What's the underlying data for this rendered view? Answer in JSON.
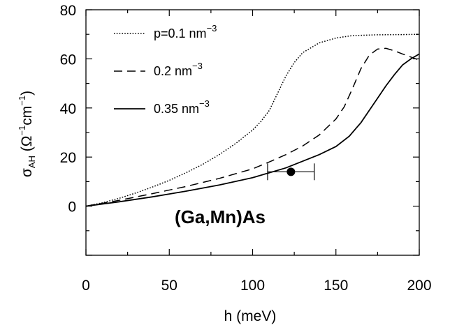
{
  "chart_data": {
    "type": "line",
    "xlabel": "h (meV)",
    "ylabel": {
      "main": "σ",
      "sub": "AH",
      "paren_open": " (Ω",
      "exp1": "−1",
      "unit2": "cm",
      "exp2": "−1",
      "paren_close": ")"
    },
    "xlim": [
      0,
      200
    ],
    "ylim": [
      -20,
      80
    ],
    "xticks": [
      0,
      50,
      100,
      150,
      200
    ],
    "yticks": [
      0,
      20,
      40,
      60,
      80
    ],
    "annotation": "(Ga,Mn)As",
    "series": [
      {
        "name": "p=0.1 nm",
        "name_sup": "−3",
        "style": "dotted",
        "points": [
          [
            0,
            0
          ],
          [
            10,
            1.4
          ],
          [
            20,
            3.2
          ],
          [
            30,
            5.4
          ],
          [
            40,
            7.8
          ],
          [
            50,
            10.5
          ],
          [
            60,
            13.6
          ],
          [
            70,
            17
          ],
          [
            80,
            21
          ],
          [
            90,
            25.6
          ],
          [
            100,
            31
          ],
          [
            105,
            34.5
          ],
          [
            110,
            39
          ],
          [
            115,
            46
          ],
          [
            120,
            53
          ],
          [
            125,
            58.5
          ],
          [
            130,
            62.5
          ],
          [
            140,
            66.5
          ],
          [
            150,
            68.5
          ],
          [
            160,
            69.5
          ],
          [
            175,
            69.8
          ],
          [
            190,
            69.9
          ],
          [
            200,
            70
          ]
        ]
      },
      {
        "name": "0.2 nm",
        "name_sup": "−3",
        "style": "dashed",
        "points": [
          [
            0,
            0
          ],
          [
            20,
            2.4
          ],
          [
            40,
            5.1
          ],
          [
            60,
            8
          ],
          [
            80,
            11.3
          ],
          [
            100,
            15.2
          ],
          [
            110,
            18
          ],
          [
            120,
            21
          ],
          [
            130,
            24.5
          ],
          [
            140,
            29
          ],
          [
            150,
            35.5
          ],
          [
            155,
            40.5
          ],
          [
            160,
            48
          ],
          [
            165,
            56
          ],
          [
            170,
            61.5
          ],
          [
            175,
            64
          ],
          [
            180,
            64.3
          ],
          [
            185,
            63.3
          ],
          [
            190,
            62
          ],
          [
            200,
            59.5
          ]
        ]
      },
      {
        "name": "0.35 nm",
        "name_sup": "−3",
        "style": "solid",
        "points": [
          [
            0,
            0
          ],
          [
            20,
            1.8
          ],
          [
            40,
            3.8
          ],
          [
            60,
            6.1
          ],
          [
            80,
            8.6
          ],
          [
            100,
            11.6
          ],
          [
            120,
            15.6
          ],
          [
            140,
            21
          ],
          [
            150,
            24.3
          ],
          [
            158,
            28.5
          ],
          [
            165,
            34
          ],
          [
            170,
            39
          ],
          [
            175,
            44
          ],
          [
            180,
            49
          ],
          [
            185,
            53.5
          ],
          [
            190,
            57.5
          ],
          [
            195,
            60
          ],
          [
            200,
            62
          ]
        ]
      }
    ],
    "data_point": {
      "x": 123,
      "y": 14,
      "xerr_low": 109,
      "xerr_high": 137
    }
  }
}
